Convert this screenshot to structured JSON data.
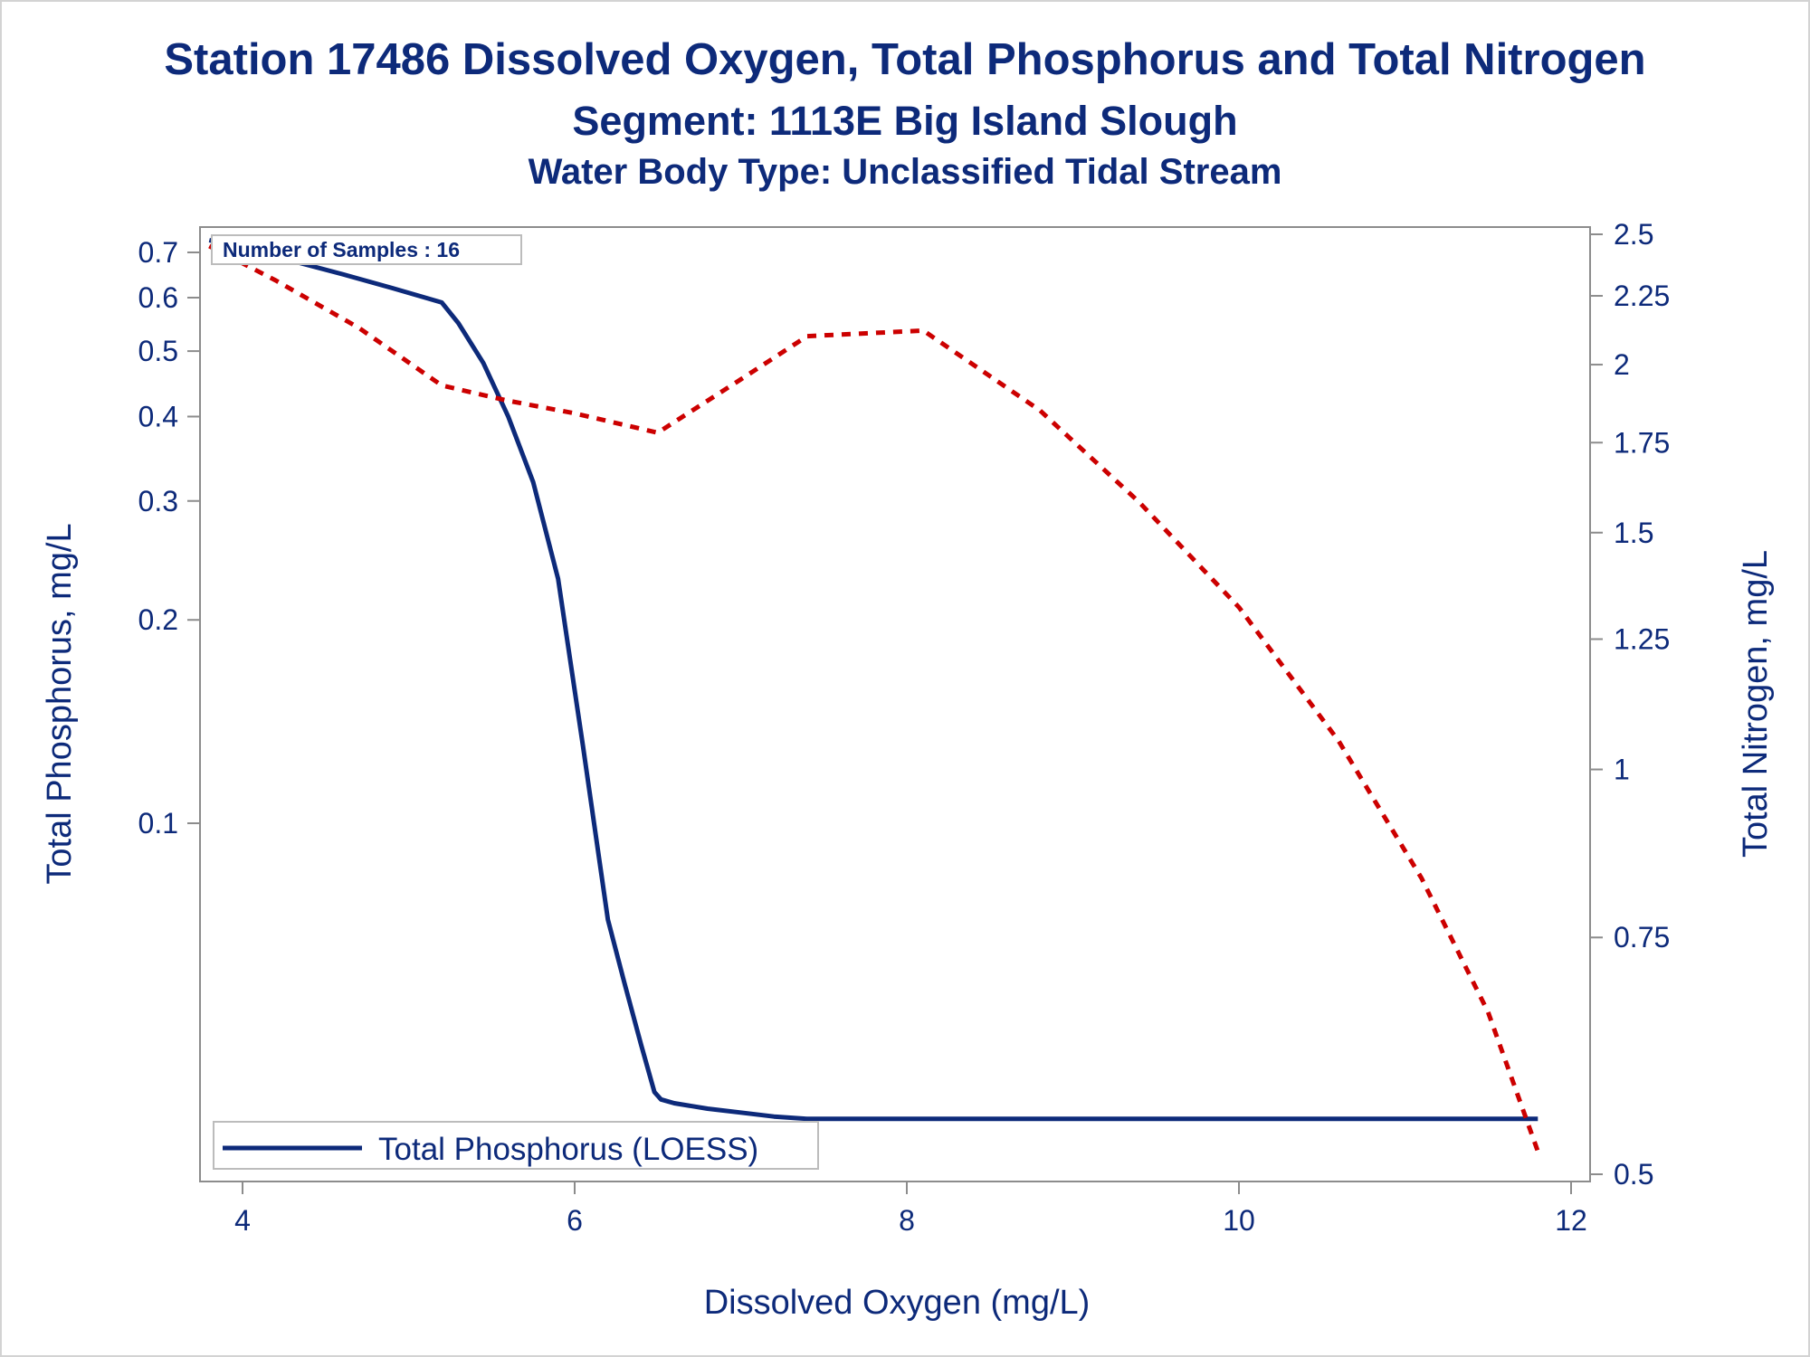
{
  "chart_data": {
    "type": "line",
    "title": "Station 17486  Dissolved Oxygen, Total Phosphorus and Total Nitrogen",
    "subtitle": "Segment: 1113E  Big Island Slough",
    "subtitle2": "Water Body Type: Unclassified Tidal Stream",
    "xlabel": "Dissolved Oxygen (mg/L)",
    "ylabel_left": "Total Phosphorus, mg/L",
    "ylabel_right": "Total Nitrogen, mg/L",
    "xlim": [
      3.75,
      12.1
    ],
    "x_ticks": [
      4,
      6,
      8,
      10,
      12
    ],
    "y_left_scale": "log",
    "y_left_ticks": [
      0.1,
      0.2,
      0.3,
      0.4,
      0.5,
      0.6,
      0.7
    ],
    "y_right_scale": "log",
    "y_right_ticks": [
      0.5,
      0.75,
      1,
      1.25,
      1.5,
      1.75,
      2,
      2.25,
      2.5
    ],
    "annotation": "Number of Samples : 16",
    "legend_position": "bottom-left",
    "grid": false,
    "series": [
      {
        "name": "Total Phosphorus (LOESS)",
        "axis": "left",
        "style": "solid",
        "color": "#0d2a7a",
        "x": [
          3.8,
          4.0,
          4.3,
          4.6,
          4.9,
          5.1,
          5.2,
          5.3,
          5.45,
          5.6,
          5.75,
          5.9,
          6.05,
          6.2,
          6.3,
          6.4,
          6.48,
          6.52,
          6.6,
          6.8,
          7.0,
          7.2,
          7.4,
          8.0,
          9.0,
          10.0,
          11.0,
          11.8
        ],
        "y": [
          0.73,
          0.71,
          0.68,
          0.65,
          0.62,
          0.6,
          0.59,
          0.55,
          0.48,
          0.4,
          0.32,
          0.23,
          0.13,
          0.072,
          0.058,
          0.047,
          0.04,
          0.039,
          0.0385,
          0.0378,
          0.0373,
          0.0368,
          0.0365,
          0.0365,
          0.0365,
          0.0365,
          0.0365,
          0.0365
        ]
      },
      {
        "name": "",
        "axis": "right",
        "style": "dashed",
        "color": "#cc0000",
        "x": [
          3.8,
          4.2,
          4.7,
          5.2,
          5.6,
          6.0,
          6.5,
          7.0,
          7.4,
          8.1,
          8.8,
          9.4,
          10.0,
          10.6,
          11.1,
          11.5,
          11.8
        ],
        "y": [
          2.45,
          2.31,
          2.13,
          1.93,
          1.88,
          1.84,
          1.78,
          1.95,
          2.1,
          2.12,
          1.85,
          1.58,
          1.32,
          1.05,
          0.83,
          0.66,
          0.52
        ]
      }
    ]
  }
}
